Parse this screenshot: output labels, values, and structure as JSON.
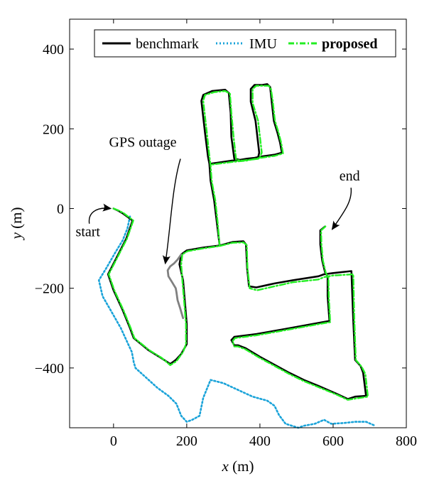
{
  "chart_data": {
    "type": "line",
    "title": "",
    "xlabel_var": "x",
    "xlabel_unit": "(m)",
    "ylabel_var": "y",
    "ylabel_unit": "(m)",
    "xlim": [
      -120,
      800
    ],
    "ylim": [
      -550,
      475
    ],
    "xticks": [
      0,
      200,
      400,
      600,
      800
    ],
    "yticks": [
      -400,
      -200,
      0,
      200,
      400
    ],
    "xtick_labels": [
      "0",
      "200",
      "400",
      "600",
      "800"
    ],
    "ytick_labels": [
      "−400",
      "−200",
      "0",
      "200",
      "400"
    ],
    "grid": false,
    "legend_position": "top-right",
    "series": [
      {
        "name": "benchmark",
        "color": "#000000",
        "style": "solid",
        "points": [
          [
            0,
            0
          ],
          [
            12,
            -5
          ],
          [
            25,
            -12
          ],
          [
            52,
            -30
          ],
          [
            35,
            -75
          ],
          [
            10,
            -120
          ],
          [
            -15,
            -165
          ],
          [
            0,
            -205
          ],
          [
            25,
            -255
          ],
          [
            45,
            -300
          ],
          [
            55,
            -325
          ],
          [
            95,
            -355
          ],
          [
            130,
            -375
          ],
          [
            155,
            -390
          ],
          [
            170,
            -380
          ],
          [
            185,
            -365
          ],
          [
            200,
            -340
          ],
          [
            200,
            -290
          ],
          [
            196,
            -245
          ],
          [
            190,
            -180
          ],
          [
            180,
            -140
          ],
          [
            185,
            -115
          ],
          [
            200,
            -105
          ],
          [
            245,
            -98
          ],
          [
            290,
            -93
          ],
          [
            325,
            -84
          ],
          [
            355,
            -82
          ],
          [
            362,
            -90
          ],
          [
            365,
            -150
          ],
          [
            370,
            -195
          ],
          [
            390,
            -198
          ],
          [
            440,
            -188
          ],
          [
            490,
            -180
          ],
          [
            560,
            -170
          ],
          [
            575,
            -165
          ],
          [
            600,
            -162
          ],
          [
            650,
            -157
          ],
          [
            655,
            -280
          ],
          [
            660,
            -380
          ],
          [
            675,
            -395
          ],
          [
            682,
            -412
          ],
          [
            690,
            -470
          ],
          [
            660,
            -472
          ],
          [
            640,
            -478
          ],
          [
            610,
            -465
          ],
          [
            560,
            -445
          ],
          [
            520,
            -430
          ],
          [
            480,
            -412
          ],
          [
            440,
            -392
          ],
          [
            400,
            -372
          ],
          [
            360,
            -350
          ],
          [
            340,
            -343
          ],
          [
            330,
            -343
          ],
          [
            322,
            -330
          ],
          [
            330,
            -322
          ],
          [
            390,
            -315
          ],
          [
            470,
            -302
          ],
          [
            530,
            -292
          ],
          [
            590,
            -282
          ],
          [
            585,
            -220
          ],
          [
            585,
            -170
          ],
          [
            578,
            -160
          ],
          [
            570,
            -130
          ],
          [
            565,
            -90
          ],
          [
            565,
            -55
          ],
          [
            578,
            -45
          ]
        ],
        "branches": [
          {
            "name": "north-branch",
            "points": [
              [
                290,
                -93
              ],
              [
                283,
                -40
              ],
              [
                275,
                20
              ],
              [
                265,
                70
              ],
              [
                262,
                112
              ],
              [
                258,
                130
              ],
              [
                250,
                190
              ],
              [
                240,
                270
              ],
              [
                245,
                285
              ],
              [
                270,
                295
              ],
              [
                305,
                298
              ],
              [
                315,
                290
              ],
              [
                320,
                240
              ],
              [
                322,
                180
              ],
              [
                330,
                125
              ],
              [
                345,
                122
              ],
              [
                365,
                125
              ],
              [
                395,
                128
              ],
              [
                398,
                140
              ],
              [
                388,
                220
              ],
              [
                375,
                268
              ],
              [
                375,
                300
              ],
              [
                385,
                310
              ],
              [
                405,
                310
              ],
              [
                420,
                312
              ],
              [
                428,
                305
              ],
              [
                432,
                270
              ],
              [
                438,
                220
              ],
              [
                448,
                190
              ],
              [
                455,
                165
              ],
              [
                460,
                140
              ],
              [
                440,
                135
              ],
              [
                400,
                130
              ],
              [
                360,
                122
              ],
              [
                322,
                120
              ],
              [
                262,
                112
              ]
            ]
          }
        ]
      },
      {
        "name": "IMU",
        "color": "#1aa3d9",
        "style": "dotted",
        "points": [
          [
            45,
            -20
          ],
          [
            38,
            -50
          ],
          [
            25,
            -80
          ],
          [
            5,
            -110
          ],
          [
            -20,
            -150
          ],
          [
            -40,
            -180
          ],
          [
            -30,
            -220
          ],
          [
            -5,
            -260
          ],
          [
            20,
            -300
          ],
          [
            40,
            -340
          ],
          [
            50,
            -360
          ],
          [
            55,
            -385
          ],
          [
            60,
            -400
          ],
          [
            90,
            -425
          ],
          [
            120,
            -450
          ],
          [
            150,
            -470
          ],
          [
            172,
            -490
          ],
          [
            185,
            -520
          ],
          [
            200,
            -535
          ],
          [
            215,
            -530
          ],
          [
            235,
            -520
          ],
          [
            245,
            -475
          ],
          [
            265,
            -430
          ],
          [
            300,
            -438
          ],
          [
            340,
            -455
          ],
          [
            380,
            -472
          ],
          [
            420,
            -482
          ],
          [
            440,
            -495
          ],
          [
            452,
            -518
          ],
          [
            470,
            -540
          ],
          [
            505,
            -550
          ],
          [
            520,
            -545
          ],
          [
            550,
            -540
          ],
          [
            575,
            -530
          ],
          [
            595,
            -540
          ],
          [
            630,
            -538
          ],
          [
            660,
            -535
          ],
          [
            690,
            -535
          ],
          [
            715,
            -545
          ]
        ]
      },
      {
        "name": "proposed",
        "color": "#22ee22",
        "style": "dashdot",
        "points": [
          [
            0,
            0
          ],
          [
            14,
            -5
          ],
          [
            28,
            -12
          ],
          [
            54,
            -30
          ],
          [
            37,
            -75
          ],
          [
            12,
            -120
          ],
          [
            -13,
            -165
          ],
          [
            2,
            -205
          ],
          [
            27,
            -255
          ],
          [
            47,
            -300
          ],
          [
            57,
            -325
          ],
          [
            97,
            -355
          ],
          [
            132,
            -375
          ],
          [
            155,
            -393
          ],
          [
            172,
            -383
          ],
          [
            190,
            -360
          ],
          [
            198,
            -340
          ],
          [
            198,
            -290
          ],
          [
            194,
            -245
          ],
          [
            188,
            -180
          ],
          [
            185,
            -140
          ],
          [
            188,
            -115
          ],
          [
            202,
            -107
          ],
          [
            245,
            -100
          ],
          [
            290,
            -94
          ],
          [
            325,
            -86
          ],
          [
            355,
            -85
          ],
          [
            364,
            -92
          ],
          [
            366,
            -150
          ],
          [
            372,
            -200
          ],
          [
            392,
            -205
          ],
          [
            440,
            -195
          ],
          [
            490,
            -185
          ],
          [
            560,
            -178
          ],
          [
            575,
            -172
          ],
          [
            600,
            -168
          ],
          [
            655,
            -165
          ],
          [
            658,
            -280
          ],
          [
            662,
            -380
          ],
          [
            678,
            -397
          ],
          [
            688,
            -415
          ],
          [
            695,
            -472
          ],
          [
            660,
            -477
          ],
          [
            640,
            -480
          ],
          [
            610,
            -467
          ],
          [
            560,
            -448
          ],
          [
            520,
            -433
          ],
          [
            480,
            -415
          ],
          [
            440,
            -395
          ],
          [
            400,
            -375
          ],
          [
            360,
            -353
          ],
          [
            340,
            -346
          ],
          [
            330,
            -346
          ],
          [
            325,
            -333
          ],
          [
            332,
            -325
          ],
          [
            390,
            -318
          ],
          [
            470,
            -305
          ],
          [
            530,
            -295
          ],
          [
            592,
            -285
          ],
          [
            588,
            -220
          ],
          [
            587,
            -172
          ],
          [
            580,
            -162
          ],
          [
            572,
            -130
          ],
          [
            568,
            -90
          ],
          [
            567,
            -55
          ],
          [
            580,
            -44
          ]
        ],
        "branches": [
          {
            "name": "north-branch",
            "points": [
              [
                290,
                -94
              ],
              [
                285,
                -40
              ],
              [
                278,
                20
              ],
              [
                268,
                70
              ],
              [
                265,
                110
              ],
              [
                262,
                130
              ],
              [
                255,
                190
              ],
              [
                245,
                270
              ],
              [
                250,
                285
              ],
              [
                275,
                292
              ],
              [
                305,
                295
              ],
              [
                318,
                288
              ],
              [
                322,
                240
              ],
              [
                328,
                180
              ],
              [
                335,
                122
              ],
              [
                350,
                120
              ],
              [
                370,
                122
              ],
              [
                398,
                125
              ],
              [
                405,
                140
              ],
              [
                395,
                220
              ],
              [
                380,
                265
              ],
              [
                380,
                300
              ],
              [
                390,
                308
              ],
              [
                408,
                308
              ],
              [
                424,
                308
              ],
              [
                430,
                300
              ],
              [
                435,
                270
              ],
              [
                441,
                220
              ],
              [
                451,
                190
              ],
              [
                458,
                165
              ],
              [
                463,
                138
              ],
              [
                440,
                132
              ],
              [
                400,
                127
              ],
              [
                362,
                120
              ],
              [
                325,
                117
              ],
              [
                265,
                110
              ]
            ]
          }
        ]
      }
    ],
    "gps_outage_segment": {
      "color": "#808080",
      "points": [
        [
          185,
          -115
        ],
        [
          175,
          -128
        ],
        [
          165,
          -138
        ],
        [
          155,
          -145
        ],
        [
          148,
          -155
        ],
        [
          150,
          -170
        ],
        [
          160,
          -185
        ],
        [
          170,
          -200
        ],
        [
          172,
          -210
        ],
        [
          175,
          -230
        ],
        [
          182,
          -250
        ],
        [
          190,
          -275
        ]
      ]
    },
    "annotations": [
      {
        "text": "GPS outage",
        "x": 80,
        "y": 155
      },
      {
        "text": "start",
        "x": -70,
        "y": -70
      },
      {
        "text": "end",
        "x": 645,
        "y": 70
      }
    ],
    "legend": {
      "entries": [
        {
          "label": "benchmark",
          "bold": false
        },
        {
          "label": "IMU",
          "bold": false
        },
        {
          "label": "proposed",
          "bold": true
        }
      ]
    }
  }
}
